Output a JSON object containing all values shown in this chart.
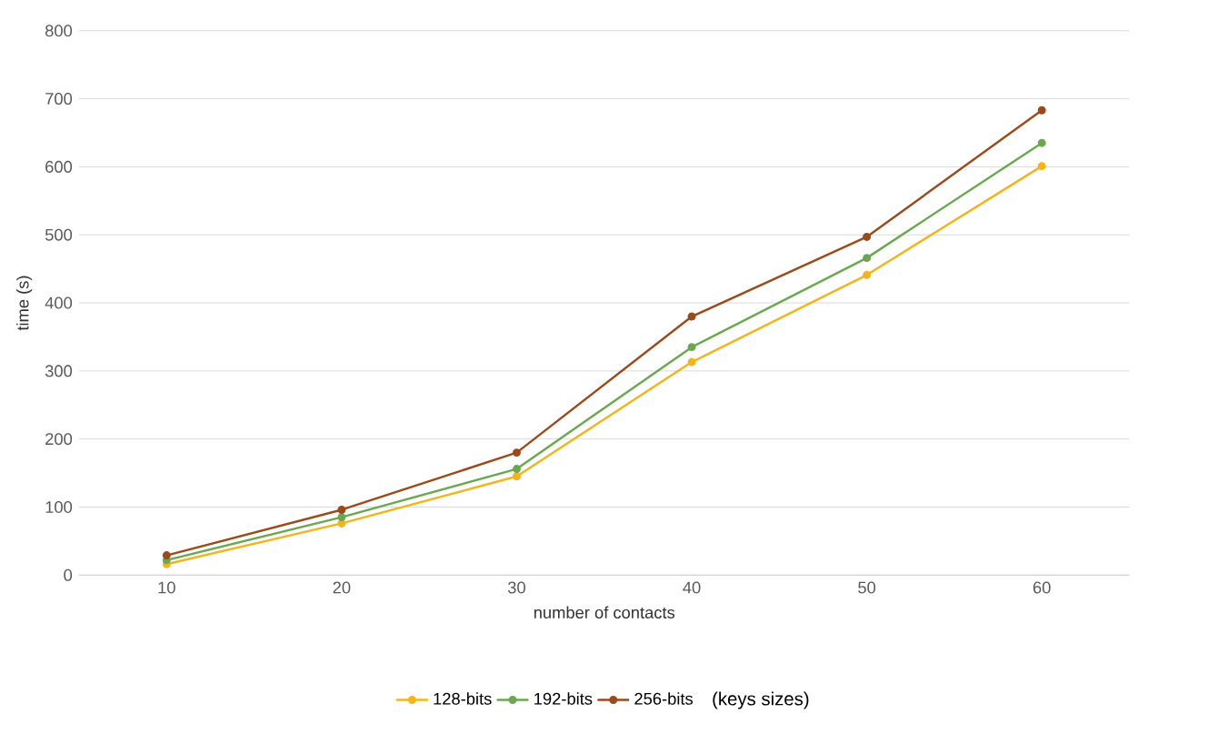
{
  "chart_data": {
    "type": "line",
    "xlabel": "number of contacts",
    "ylabel": "time (s)",
    "legend_title": "(keys sizes)",
    "categories": [
      "10",
      "20",
      "30",
      "40",
      "50",
      "60"
    ],
    "series": [
      {
        "name": "128-bits",
        "color": "#f4b41a",
        "values": [
          16,
          76,
          145,
          313,
          441,
          601
        ]
      },
      {
        "name": "192-bits",
        "color": "#6aa84f",
        "values": [
          22,
          85,
          156,
          335,
          466,
          635
        ]
      },
      {
        "name": "256-bits",
        "color": "#9c4a1a",
        "values": [
          29,
          96,
          180,
          380,
          497,
          683
        ]
      }
    ],
    "ylim": [
      0,
      800
    ],
    "yticks": [
      0,
      100,
      200,
      300,
      400,
      500,
      600,
      700,
      800
    ],
    "grid": "y",
    "legend": "bottom",
    "marker": "circle",
    "line_style": "solid"
  }
}
